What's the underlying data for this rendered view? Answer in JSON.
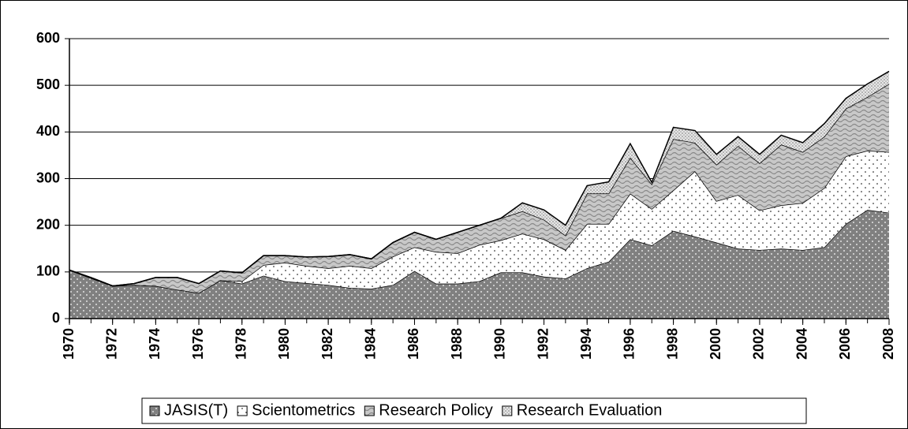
{
  "chart_data": {
    "type": "stacked_area",
    "x": [
      1970,
      1971,
      1972,
      1973,
      1974,
      1975,
      1976,
      1977,
      1978,
      1979,
      1980,
      1981,
      1982,
      1983,
      1984,
      1985,
      1986,
      1987,
      1988,
      1989,
      1990,
      1991,
      1992,
      1993,
      1994,
      1995,
      1996,
      1997,
      1998,
      1999,
      2000,
      2001,
      2002,
      2003,
      2004,
      2005,
      2006,
      2007,
      2008
    ],
    "xlim": [
      1970,
      2008
    ],
    "xticks": [
      1970,
      1972,
      1974,
      1976,
      1978,
      1980,
      1982,
      1984,
      1986,
      1988,
      1990,
      1992,
      1994,
      1996,
      1998,
      2000,
      2002,
      2004,
      2006,
      2008
    ],
    "ylim": [
      0,
      600
    ],
    "yticks": [
      0,
      100,
      200,
      300,
      400,
      500,
      600
    ],
    "grid": true,
    "legend": "bottom",
    "series": [
      {
        "name": "JASIS(T)",
        "color": "#808080",
        "values": [
          104,
          87,
          70,
          72,
          70,
          62,
          55,
          82,
          75,
          92,
          80,
          76,
          72,
          66,
          64,
          72,
          102,
          75,
          75,
          80,
          99,
          99,
          90,
          86,
          108,
          122,
          170,
          157,
          188,
          176,
          163,
          150,
          147,
          150,
          147,
          153,
          203,
          233,
          227
        ]
      },
      {
        "name": "Scientometrics",
        "color": "#ffffff",
        "values": [
          0,
          0,
          0,
          0,
          0,
          0,
          0,
          0,
          5,
          23,
          40,
          37,
          36,
          47,
          44,
          61,
          51,
          68,
          65,
          78,
          69,
          83,
          80,
          61,
          95,
          81,
          98,
          78,
          87,
          140,
          89,
          115,
          85,
          93,
          101,
          127,
          145,
          127,
          130
        ]
      },
      {
        "name": "Research Policy",
        "color": "#c8c8c8",
        "values": [
          0,
          1,
          0,
          3,
          18,
          26,
          20,
          20,
          18,
          20,
          15,
          19,
          25,
          24,
          20,
          30,
          32,
          27,
          45,
          42,
          47,
          48,
          42,
          31,
          65,
          65,
          77,
          53,
          110,
          61,
          78,
          105,
          101,
          130,
          109,
          110,
          102,
          115,
          146
        ]
      },
      {
        "name": "Research Evaluation",
        "color": "#e6e6e6",
        "values": [
          0,
          0,
          0,
          0,
          0,
          0,
          0,
          0,
          0,
          0,
          0,
          0,
          0,
          0,
          0,
          0,
          0,
          0,
          0,
          0,
          0,
          18,
          21,
          22,
          17,
          25,
          30,
          4,
          25,
          26,
          22,
          20,
          19,
          20,
          20,
          28,
          22,
          28,
          27
        ]
      }
    ]
  }
}
